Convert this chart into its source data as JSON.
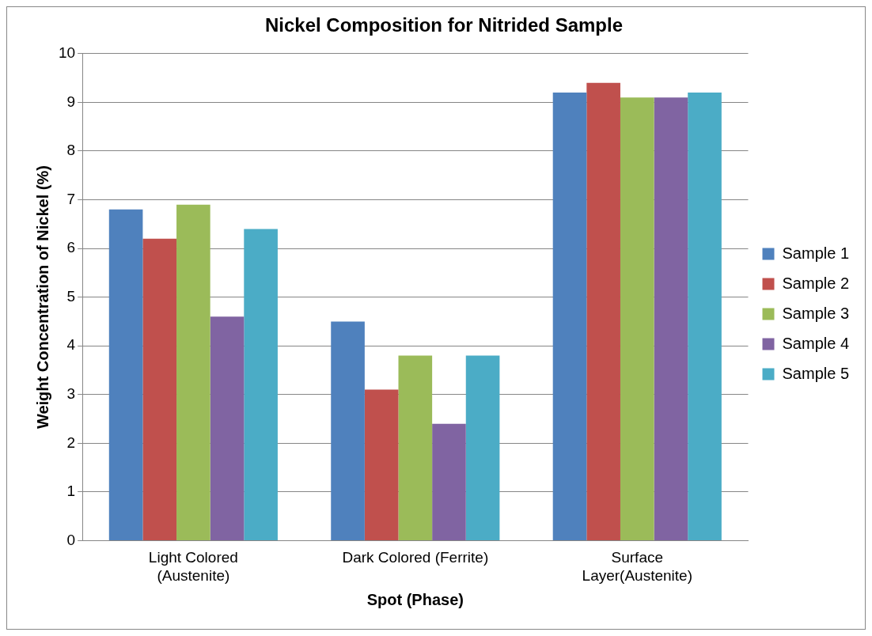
{
  "chart_data": {
    "type": "bar",
    "title": "Nickel Composition for Nitrided Sample",
    "xlabel": "Spot (Phase)",
    "ylabel": "Weight Concentration of Nickel (%)",
    "categories": [
      "Light Colored (Austenite)",
      "Dark Colored (Ferrite)",
      "Surface Layer(Austenite)"
    ],
    "series": [
      {
        "name": "Sample 1",
        "color": "#4f81bd",
        "values": [
          6.8,
          4.5,
          9.2
        ]
      },
      {
        "name": "Sample 2",
        "color": "#c0504d",
        "values": [
          6.2,
          3.1,
          9.4
        ]
      },
      {
        "name": "Sample 3",
        "color": "#9bbb59",
        "values": [
          6.9,
          3.8,
          9.1
        ]
      },
      {
        "name": "Sample 4",
        "color": "#8064a2",
        "values": [
          4.6,
          2.4,
          9.1
        ]
      },
      {
        "name": "Sample 5",
        "color": "#4bacc6",
        "values": [
          6.4,
          3.8,
          9.2
        ]
      }
    ],
    "ylim": [
      0,
      10
    ],
    "yticks": [
      0,
      1,
      2,
      3,
      4,
      5,
      6,
      7,
      8,
      9,
      10
    ],
    "grid": "y",
    "legend": "right"
  }
}
